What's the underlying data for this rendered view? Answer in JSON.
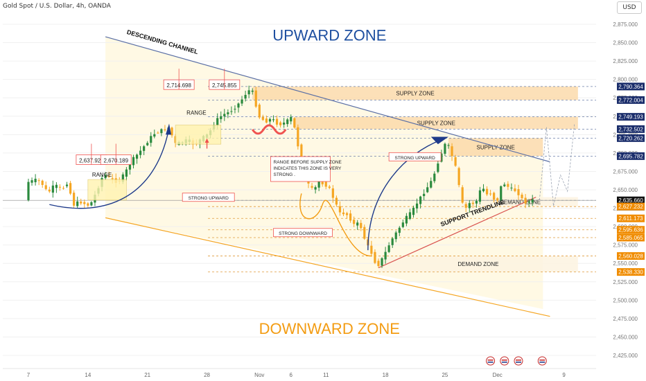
{
  "header": {
    "symbol": "Gold Spot / U.S. Dollar, 4h, OANDA",
    "currency": "USD"
  },
  "colors": {
    "up": "#2b8a3e",
    "down": "#f5a623",
    "navy": "#1e3a8a",
    "orange": "#f39c12",
    "red": "#ef5350",
    "upwardZoneTitle": "#1e4fa0",
    "downwardZoneTitle": "#f39c12"
  },
  "chart_data": {
    "type": "candlestick",
    "title": "",
    "price_axis": {
      "min": 2412,
      "max": 2900,
      "ticks": [
        "2,875.000",
        "2,850.000",
        "2,825.000",
        "2,800.000",
        "2,775.000",
        "2,750.000",
        "2,725.000",
        "2,700.000",
        "2,675.000",
        "2,650.000",
        "2,625.000",
        "2,600.000",
        "2,575.000",
        "2,550.000",
        "2,525.000",
        "2,500.000",
        "2,475.000",
        "2,450.000",
        "2,425.000"
      ]
    },
    "time_axis": {
      "labels": [
        {
          "text": "7",
          "i": 0
        },
        {
          "text": "14",
          "i": 17
        },
        {
          "text": "21",
          "i": 34
        },
        {
          "text": "28",
          "i": 51
        },
        {
          "text": "Nov",
          "i": 66
        },
        {
          "text": "6",
          "i": 75
        },
        {
          "text": "11",
          "i": 85
        },
        {
          "text": "18",
          "i": 102
        },
        {
          "text": "25",
          "i": 119
        },
        {
          "text": "Dec",
          "i": 134
        },
        {
          "text": "9",
          "i": 153
        }
      ]
    },
    "price_path": [
      [
        0,
        2660
      ],
      [
        3,
        2664
      ],
      [
        5,
        2655
      ],
      [
        6,
        2645
      ],
      [
        8,
        2657
      ],
      [
        10,
        2650
      ],
      [
        12,
        2662
      ],
      [
        13,
        2628
      ],
      [
        15,
        2634
      ],
      [
        18,
        2628
      ],
      [
        20,
        2648
      ],
      [
        22,
        2672
      ],
      [
        24,
        2665
      ],
      [
        26,
        2660
      ],
      [
        28,
        2672
      ],
      [
        30,
        2690
      ],
      [
        32,
        2700
      ],
      [
        34,
        2712
      ],
      [
        36,
        2725
      ],
      [
        38,
        2730
      ],
      [
        40,
        2733
      ],
      [
        41,
        2736
      ],
      [
        42,
        2712
      ],
      [
        44,
        2714
      ],
      [
        46,
        2718
      ],
      [
        48,
        2711
      ],
      [
        50,
        2720
      ],
      [
        52,
        2726
      ],
      [
        54,
        2744
      ],
      [
        56,
        2752
      ],
      [
        58,
        2756
      ],
      [
        60,
        2764
      ],
      [
        62,
        2776
      ],
      [
        63,
        2784
      ],
      [
        64,
        2786
      ],
      [
        65,
        2780
      ],
      [
        66,
        2750
      ],
      [
        67,
        2748
      ],
      [
        68,
        2742
      ],
      [
        70,
        2747
      ],
      [
        72,
        2738
      ],
      [
        74,
        2742
      ],
      [
        76,
        2750
      ],
      [
        77,
        2718
      ],
      [
        78,
        2702
      ],
      [
        79,
        2684
      ],
      [
        80,
        2660
      ],
      [
        82,
        2648
      ],
      [
        84,
        2668
      ],
      [
        85,
        2650
      ],
      [
        86,
        2662
      ],
      [
        87,
        2640
      ],
      [
        88,
        2640
      ],
      [
        89,
        2618
      ],
      [
        91,
        2618
      ],
      [
        92,
        2614
      ],
      [
        93,
        2606
      ],
      [
        94,
        2600
      ],
      [
        95,
        2608
      ],
      [
        96,
        2590
      ],
      [
        97,
        2578
      ],
      [
        98,
        2568
      ],
      [
        99,
        2560
      ],
      [
        100,
        2544
      ],
      [
        102,
        2560
      ],
      [
        104,
        2580
      ],
      [
        106,
        2595
      ],
      [
        108,
        2610
      ],
      [
        110,
        2620
      ],
      [
        112,
        2636
      ],
      [
        114,
        2650
      ],
      [
        116,
        2665
      ],
      [
        118,
        2695
      ],
      [
        119,
        2705
      ],
      [
        120,
        2718
      ],
      [
        121,
        2700
      ],
      [
        122,
        2692
      ],
      [
        123,
        2670
      ],
      [
        124,
        2640
      ],
      [
        125,
        2622
      ],
      [
        127,
        2635
      ],
      [
        128,
        2628
      ],
      [
        130,
        2655
      ],
      [
        132,
        2640
      ],
      [
        133,
        2650
      ],
      [
        134,
        2625
      ],
      [
        135,
        2648
      ],
      [
        136,
        2660
      ],
      [
        138,
        2652
      ],
      [
        140,
        2648
      ],
      [
        142,
        2634
      ],
      [
        143,
        2632
      ],
      [
        144,
        2636
      ]
    ],
    "price_labels": [
      {
        "value": "2,790.364",
        "price": 2790.364,
        "style": "navy"
      },
      {
        "value": "2,772.004",
        "price": 2772.004,
        "style": "navy"
      },
      {
        "value": "2,749.193",
        "price": 2749.193,
        "style": "navy"
      },
      {
        "value": "2,732.502",
        "price": 2732.502,
        "style": "navy"
      },
      {
        "value": "2,720.262",
        "price": 2720.262,
        "style": "navy"
      },
      {
        "value": "2,695.782",
        "price": 2695.782,
        "style": "navy"
      },
      {
        "value": "2,635.660",
        "price": 2635.66,
        "style": "black",
        "sub": "03:06:19"
      },
      {
        "value": "2,627.232",
        "price": 2627.232,
        "style": "orange"
      },
      {
        "value": "2,611.173",
        "price": 2611.173,
        "style": "orange"
      },
      {
        "value": "2,595.636",
        "price": 2595.636,
        "style": "orange"
      },
      {
        "value": "2,585.065",
        "price": 2585.065,
        "style": "orange"
      },
      {
        "value": "2,560.028",
        "price": 2560.028,
        "style": "orange"
      },
      {
        "value": "2,538.330",
        "price": 2538.33,
        "style": "orange"
      }
    ],
    "zones": [
      {
        "label": "SUPPLY ZONE",
        "from": 2772.004,
        "to": 2790.364,
        "i0": 64,
        "i1": 157
      },
      {
        "label": "SUPPLY ZONE",
        "from": 2732.502,
        "to": 2749.193,
        "i0": 76,
        "i1": 157
      },
      {
        "label": "SUPPLY ZONE",
        "from": 2695.782,
        "to": 2720.262,
        "i0": 120,
        "i1": 147
      },
      {
        "label": "DEMAND ZONE",
        "from": 2627.232,
        "to": 2640,
        "i0": 124,
        "i1": 157
      },
      {
        "label": "DEMAND ZONE",
        "from": 2538.33,
        "to": 2560.028,
        "i0": 100,
        "i1": 157
      }
    ],
    "boxes": [
      {
        "label": "2,637.920",
        "price": 2690,
        "i": 18
      },
      {
        "label": "2,670.189",
        "price": 2690,
        "i": 25
      },
      {
        "label": "2,714.698",
        "price": 2792,
        "i": 43
      },
      {
        "label": "2,745.855",
        "price": 2792,
        "i": 56
      }
    ],
    "annotations": [
      {
        "text": "RANGE",
        "price": 2668,
        "i": 21
      },
      {
        "text": "RANGE",
        "price": 2752,
        "i": 48
      },
      {
        "text": "STRONG UPWARD",
        "price": 2638,
        "i": 44,
        "boxed": true
      },
      {
        "text": "STRONG UPWARD",
        "price": 2693,
        "i": 103,
        "boxed": true
      },
      {
        "text": "STRONG DOWNWARD",
        "price": 2590,
        "i": 70,
        "boxed": true
      },
      {
        "text": "RANGE BEFORE SUPPLY ZONE",
        "price": 2682,
        "i": 70,
        "boxed": true,
        "line": 1
      },
      {
        "text": "INDICATES THIS ZONE IS VERY",
        "price": 2682,
        "i": 70,
        "boxed": true,
        "line": 2
      },
      {
        "text": "STRONG .",
        "price": 2682,
        "i": 70,
        "boxed": true,
        "line": 3
      },
      {
        "text": "DESCENDING CHANNEL",
        "price": 2862,
        "i": 28,
        "rotated": true
      },
      {
        "text": "SUPPORT TRENDLINE",
        "price": 2600,
        "i": 118,
        "rotated": true
      }
    ],
    "zone_titles": {
      "upward": "UPWARD ZONE",
      "downward": "DOWNWARD ZONE"
    }
  }
}
